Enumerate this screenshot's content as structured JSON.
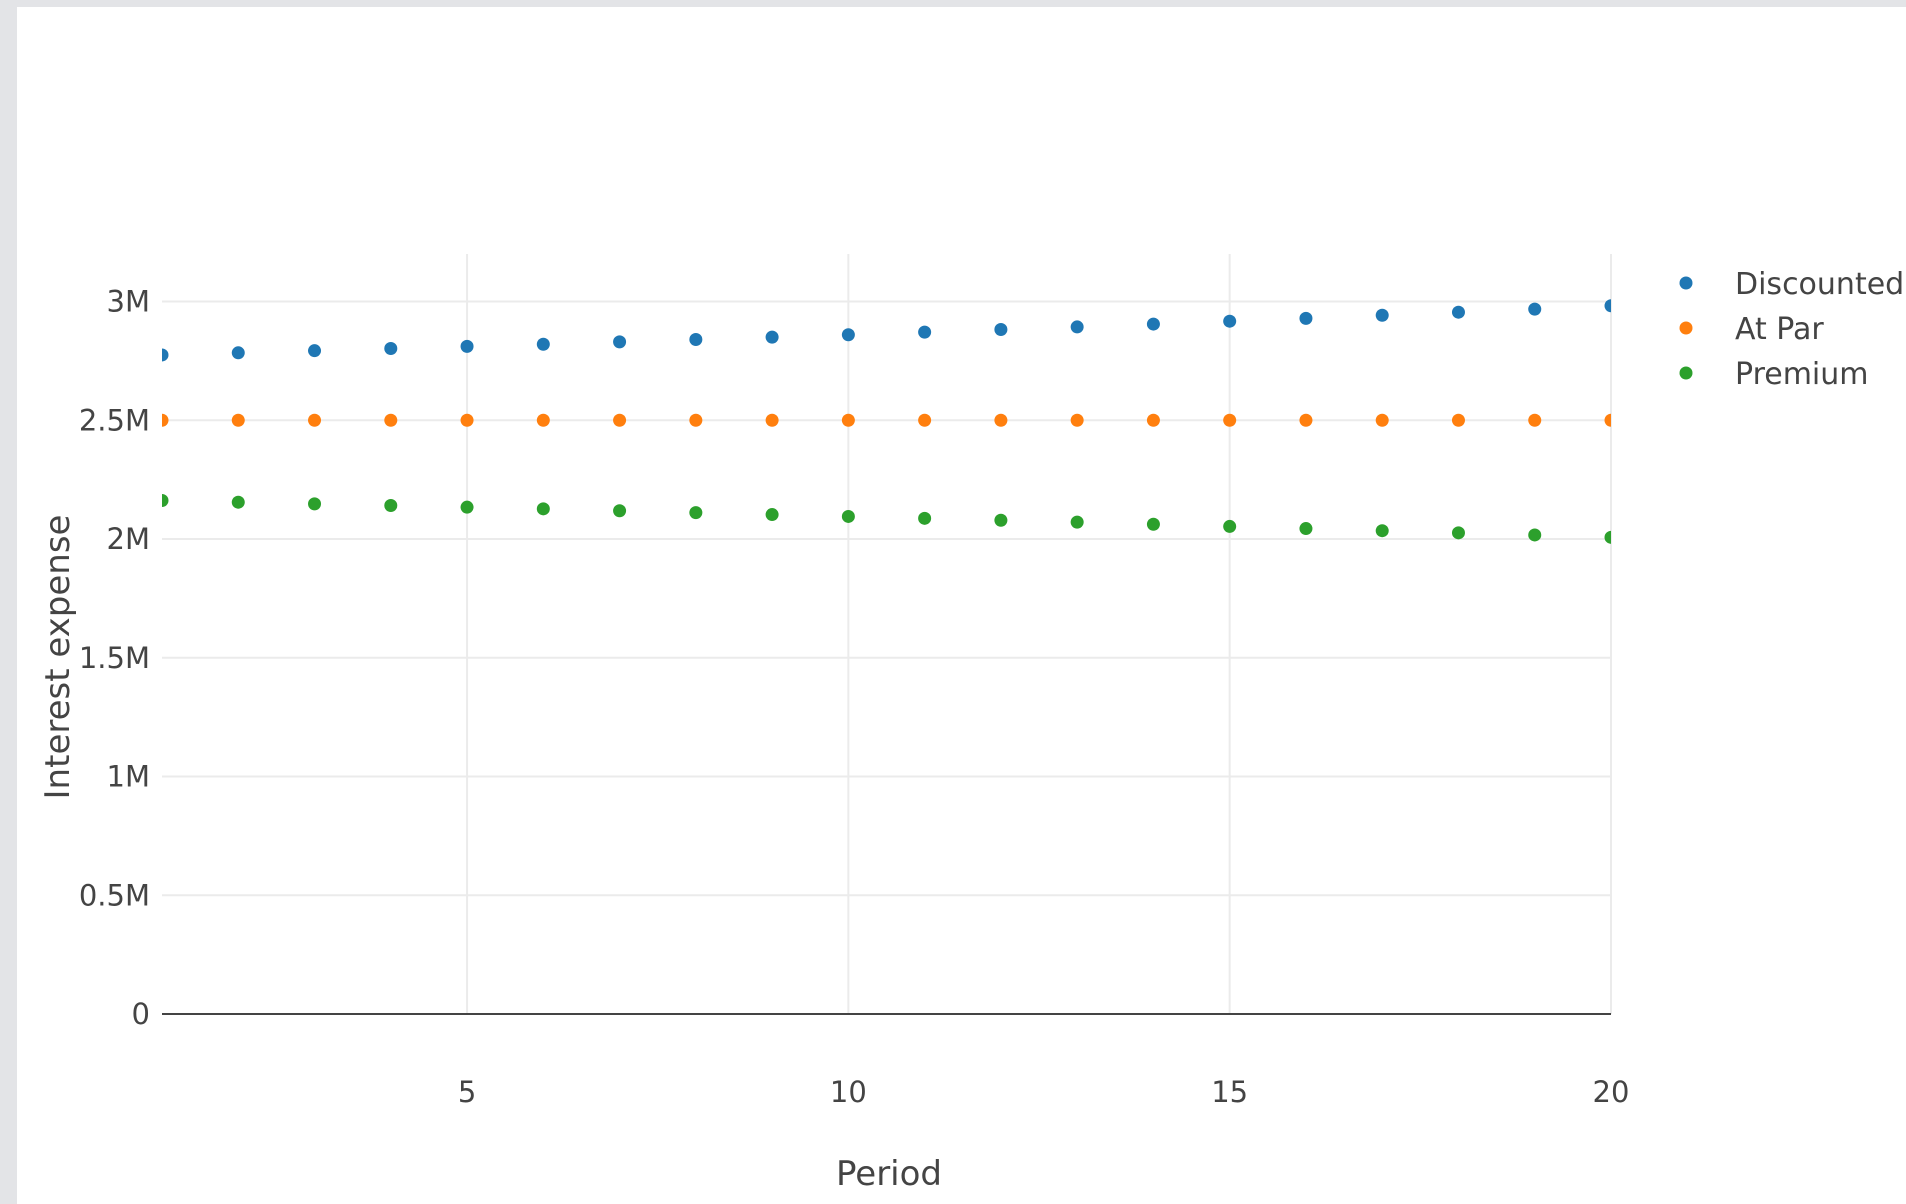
{
  "chart_data": {
    "type": "scatter",
    "title": "",
    "xlabel": "Period",
    "ylabel": "Interest expense",
    "xlim": [
      1,
      20
    ],
    "ylim": [
      0,
      3200000
    ],
    "x_ticks": [
      5,
      10,
      15,
      20
    ],
    "x_tick_labels": [
      "5",
      "10",
      "15",
      "20"
    ],
    "y_ticks": [
      0,
      500000,
      1000000,
      1500000,
      2000000,
      2500000,
      3000000
    ],
    "y_tick_labels": [
      "0",
      "0.5M",
      "1M",
      "1.5M",
      "2M",
      "2.5M",
      "3M"
    ],
    "grid": true,
    "legend_position": "top-right",
    "x": [
      1,
      2,
      3,
      4,
      5,
      6,
      7,
      8,
      9,
      10,
      11,
      12,
      13,
      14,
      15,
      16,
      17,
      18,
      19,
      20
    ],
    "series": [
      {
        "name": "Discounted",
        "color": "#1f77b4",
        "values": [
          2775000,
          2784000,
          2793000,
          2802000,
          2811000,
          2820000,
          2830000,
          2840000,
          2850000,
          2860000,
          2871000,
          2882000,
          2893000,
          2905000,
          2917000,
          2929000,
          2942000,
          2955000,
          2968000,
          2982000
        ]
      },
      {
        "name": "At Par",
        "color": "#ff7f0e",
        "values": [
          2500000,
          2500000,
          2500000,
          2500000,
          2500000,
          2500000,
          2500000,
          2500000,
          2500000,
          2500000,
          2500000,
          2500000,
          2500000,
          2500000,
          2500000,
          2500000,
          2500000,
          2500000,
          2500000,
          2500000
        ]
      },
      {
        "name": "Premium",
        "color": "#2ca02c",
        "values": [
          2162000,
          2155000,
          2148000,
          2141000,
          2134000,
          2127000,
          2119000,
          2111000,
          2103000,
          2095000,
          2087000,
          2079000,
          2071000,
          2062000,
          2053000,
          2044000,
          2035000,
          2026000,
          2017000,
          2007000
        ]
      }
    ]
  }
}
